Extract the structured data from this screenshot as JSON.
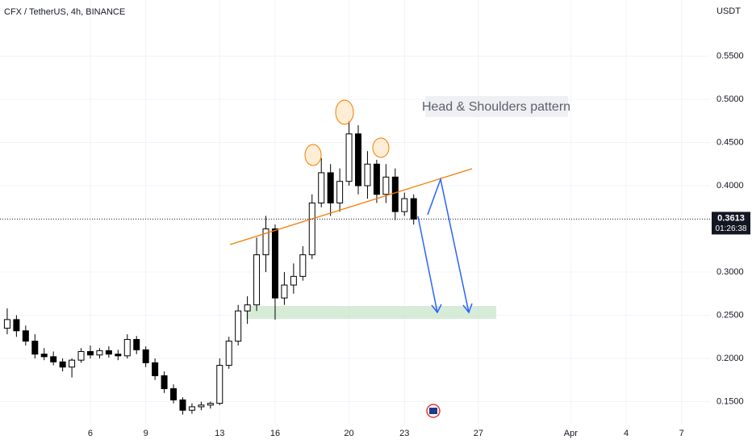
{
  "chart_data": {
    "type": "candlestick",
    "title": "CFX / TetherUS, 4h, BINANCE",
    "y_axis_unit": "USDT",
    "annotation": "Head & Shoulders pattern",
    "last_price": 0.3613,
    "countdown": "01:26:38",
    "x": [
      1.5,
      2,
      2.5,
      3,
      3.5,
      4,
      4.5,
      5,
      5.5,
      6,
      6.5,
      7,
      7.5,
      8,
      8.5,
      9,
      9.5,
      10,
      10.5,
      11,
      11.5,
      12,
      12.5,
      13,
      13.5,
      14,
      14.5,
      15,
      15.5,
      16,
      16.5,
      17,
      17.5,
      18,
      18.5,
      19,
      19.5,
      20,
      20.5,
      21,
      21.5,
      22,
      22.5,
      23,
      23.5
    ],
    "series": [
      {
        "name": "CFX / TetherUS",
        "open": [
          0.235,
          0.245,
          0.232,
          0.22,
          0.205,
          0.202,
          0.196,
          0.19,
          0.198,
          0.208,
          0.204,
          0.209,
          0.205,
          0.203,
          0.222,
          0.21,
          0.195,
          0.18,
          0.165,
          0.152,
          0.14,
          0.144,
          0.146,
          0.148,
          0.192,
          0.22,
          0.255,
          0.262,
          0.32,
          0.35,
          0.27,
          0.285,
          0.295,
          0.32,
          0.38,
          0.415,
          0.38,
          0.405,
          0.46,
          0.4,
          0.425,
          0.39,
          0.41,
          0.37,
          0.385
        ],
        "high": [
          0.258,
          0.25,
          0.238,
          0.228,
          0.212,
          0.208,
          0.2,
          0.2,
          0.212,
          0.215,
          0.212,
          0.214,
          0.21,
          0.228,
          0.226,
          0.214,
          0.2,
          0.185,
          0.17,
          0.155,
          0.148,
          0.15,
          0.15,
          0.2,
          0.225,
          0.262,
          0.272,
          0.34,
          0.365,
          0.355,
          0.3,
          0.31,
          0.33,
          0.39,
          0.432,
          0.425,
          0.42,
          0.475,
          0.47,
          0.44,
          0.43,
          0.425,
          0.42,
          0.392,
          0.39
        ],
        "low": [
          0.228,
          0.225,
          0.215,
          0.2,
          0.198,
          0.192,
          0.185,
          0.178,
          0.195,
          0.2,
          0.2,
          0.201,
          0.198,
          0.2,
          0.205,
          0.19,
          0.175,
          0.16,
          0.148,
          0.135,
          0.136,
          0.14,
          0.142,
          0.146,
          0.188,
          0.215,
          0.24,
          0.255,
          0.3,
          0.245,
          0.262,
          0.275,
          0.29,
          0.315,
          0.375,
          0.365,
          0.37,
          0.4,
          0.39,
          0.385,
          0.38,
          0.38,
          0.36,
          0.365,
          0.355
        ],
        "close": [
          0.245,
          0.232,
          0.22,
          0.205,
          0.202,
          0.196,
          0.19,
          0.198,
          0.208,
          0.204,
          0.209,
          0.205,
          0.203,
          0.222,
          0.21,
          0.195,
          0.18,
          0.165,
          0.152,
          0.14,
          0.144,
          0.146,
          0.148,
          0.192,
          0.22,
          0.255,
          0.262,
          0.32,
          0.35,
          0.27,
          0.285,
          0.295,
          0.32,
          0.38,
          0.415,
          0.38,
          0.405,
          0.46,
          0.4,
          0.425,
          0.39,
          0.41,
          0.37,
          0.385,
          0.3613
        ]
      }
    ],
    "up_color": "#ffffff",
    "down_color": "#000000",
    "wick_color": "#000000",
    "xlim": [
      1.11,
      39.54
    ],
    "xticks": [
      6,
      9,
      13,
      16,
      20,
      23,
      27,
      {
        "value": 32,
        "label": "Apr"
      },
      {
        "value": 35,
        "label": "4"
      },
      {
        "value": 38,
        "label": "7"
      }
    ],
    "ylim": [
      0.1243,
      0.615
    ],
    "yticks": [
      {
        "value": 0.15,
        "label": "0.1500"
      },
      {
        "value": 0.2,
        "label": "0.2000"
      },
      {
        "value": 0.25,
        "label": "0.2500"
      },
      {
        "value": 0.3,
        "label": "0.3000"
      },
      {
        "value": 0.4,
        "label": "0.4000"
      },
      {
        "value": 0.45,
        "label": "0.4500"
      },
      {
        "value": 0.5,
        "label": "0.5000"
      },
      {
        "value": 0.55,
        "label": "0.5500"
      }
    ],
    "grid": true
  }
}
